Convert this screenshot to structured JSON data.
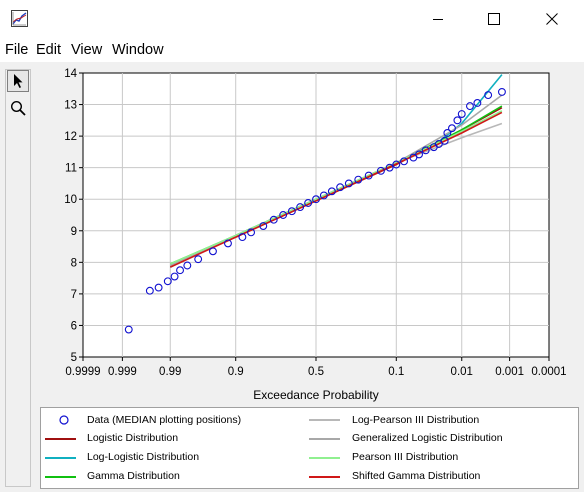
{
  "window": {
    "title": "",
    "menu": [
      "File",
      "Edit",
      "View",
      "Window"
    ]
  },
  "toolbar": {
    "tools": [
      {
        "icon": "arrow-pointer-icon",
        "active": true
      },
      {
        "icon": "magnifier-icon",
        "active": false
      }
    ]
  },
  "chart_data": {
    "type": "scatter",
    "xlabel": "Exceedance Probability",
    "ylabel": "",
    "x_scale": "normal-probability (reversed)",
    "x_ticks": [
      "0.9999",
      "0.999",
      "0.99",
      "0.9",
      "0.5",
      "0.1",
      "0.01",
      "0.001",
      "0.0001"
    ],
    "y_ticks": [
      "5",
      "6",
      "7",
      "8",
      "9",
      "10",
      "11",
      "12",
      "13",
      "14"
    ],
    "ylim": [
      5,
      14
    ],
    "grid": true,
    "legend_position": "bottom",
    "series": [
      {
        "name": "Data (MEDIAN plotting positions)",
        "kind": "markers",
        "marker": "open-circle",
        "color": "#1010d0",
        "x": [
          0.9986,
          0.996,
          0.994,
          0.991,
          0.988,
          0.985,
          0.98,
          0.97,
          0.95,
          0.92,
          0.88,
          0.85,
          0.8,
          0.75,
          0.7,
          0.65,
          0.6,
          0.55,
          0.5,
          0.45,
          0.4,
          0.35,
          0.3,
          0.25,
          0.2,
          0.15,
          0.12,
          0.1,
          0.08,
          0.06,
          0.05,
          0.04,
          0.03,
          0.025,
          0.02,
          0.018,
          0.015,
          0.012,
          0.01,
          0.007,
          0.005,
          0.003,
          0.0015
        ],
        "y": [
          5.87,
          7.1,
          7.2,
          7.4,
          7.55,
          7.75,
          7.9,
          8.1,
          8.35,
          8.6,
          8.8,
          8.95,
          9.15,
          9.35,
          9.5,
          9.62,
          9.75,
          9.88,
          10.0,
          10.12,
          10.25,
          10.38,
          10.5,
          10.62,
          10.75,
          10.9,
          11.0,
          11.1,
          11.2,
          11.32,
          11.42,
          11.55,
          11.65,
          11.75,
          11.85,
          12.1,
          12.25,
          12.5,
          12.7,
          12.95,
          13.05,
          13.3,
          13.4
        ]
      },
      {
        "name": "Logistic Distribution",
        "color": "#a01010",
        "x": [
          0.99,
          0.9,
          0.5,
          0.1,
          0.01,
          0.0015
        ],
        "y": [
          7.9,
          8.8,
          9.95,
          11.1,
          12.2,
          12.9
        ]
      },
      {
        "name": "Log-Logistic Distribution",
        "color": "#10b0c0",
        "x": [
          0.99,
          0.9,
          0.5,
          0.1,
          0.03,
          0.01,
          0.0015
        ],
        "y": [
          7.85,
          8.85,
          10.0,
          11.15,
          11.7,
          12.4,
          13.95
        ]
      },
      {
        "name": "Gamma Distribution",
        "color": "#10c010",
        "x": [
          0.99,
          0.9,
          0.5,
          0.1,
          0.01,
          0.0015
        ],
        "y": [
          7.95,
          8.85,
          10.0,
          11.15,
          12.2,
          12.95
        ]
      },
      {
        "name": "Log-Pearson III Distribution",
        "color": "#b8b8b8",
        "x": [
          0.99,
          0.9,
          0.5,
          0.1,
          0.01,
          0.0015
        ],
        "y": [
          7.9,
          8.85,
          10.0,
          11.15,
          11.95,
          12.4
        ]
      },
      {
        "name": "Generalized Logistic Distribution",
        "color": "#a8a8a8",
        "x": [
          0.99,
          0.9,
          0.5,
          0.1,
          0.01,
          0.0015
        ],
        "y": [
          7.9,
          8.85,
          10.0,
          11.15,
          12.35,
          13.3
        ]
      },
      {
        "name": "Pearson III Distribution",
        "color": "#90f090",
        "x": [
          0.99,
          0.9,
          0.5,
          0.1,
          0.01,
          0.0015
        ],
        "y": [
          7.95,
          8.85,
          10.0,
          11.15,
          12.15,
          12.8
        ]
      },
      {
        "name": "Shifted Gamma Distribution",
        "color": "#d01818",
        "x": [
          0.99,
          0.9,
          0.5,
          0.1,
          0.01,
          0.0015
        ],
        "y": [
          7.85,
          8.8,
          9.95,
          11.12,
          12.1,
          12.75
        ]
      }
    ]
  }
}
